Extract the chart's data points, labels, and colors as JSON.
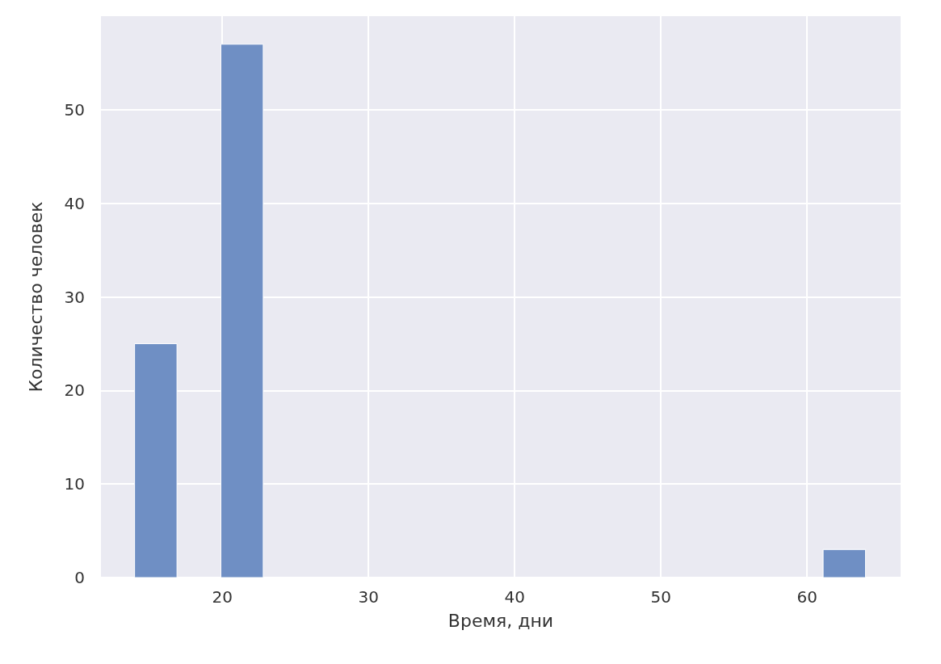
{
  "chart_data": {
    "type": "histogram",
    "xlabel": "Время, дни",
    "ylabel": "Количество человек",
    "bins": [
      14.0,
      16.9,
      19.9,
      22.8,
      61.1,
      64.0
    ],
    "values": [
      25,
      0,
      57,
      0,
      3
    ],
    "color": "#6f8fc4",
    "xlim": [
      11.7,
      66.4
    ],
    "xticks": [
      20,
      30,
      40,
      50,
      60
    ],
    "ylim": [
      0,
      60
    ],
    "yticks": [
      0,
      10,
      20,
      30,
      40,
      50
    ],
    "grid": true
  }
}
